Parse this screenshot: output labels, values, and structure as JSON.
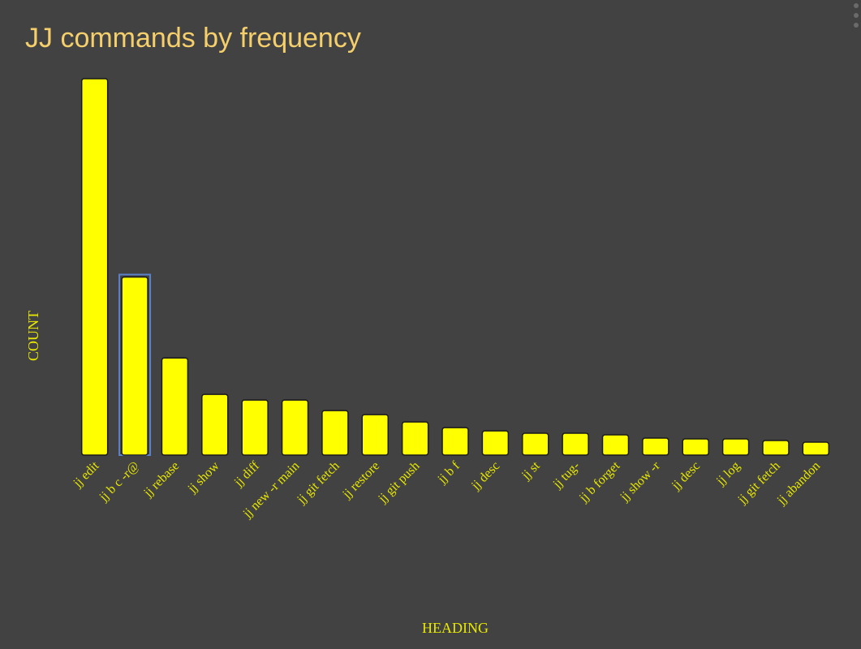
{
  "chart_data": {
    "type": "bar",
    "title": "JJ commands by frequency",
    "xlabel": "HEADING",
    "ylabel": "COUNT",
    "categories": [
      "jj edit",
      "jj b c -r@",
      "jj rebase",
      "jj show",
      "jj diff",
      "jj new -r main",
      "jj git fetch",
      "jj restore",
      "jj git push",
      "jj b f",
      "jj desc",
      "jj st",
      "jj tug-",
      "jj b forget",
      "jj show -r",
      "jj desc",
      "jj log",
      "jj git fetch",
      "jj abandon"
    ],
    "values": [
      465,
      220,
      120,
      75,
      68,
      68,
      55,
      50,
      41,
      34,
      30,
      27,
      27,
      25,
      21,
      20,
      20,
      18,
      16
    ],
    "ylim": [
      0,
      465
    ],
    "grid": false,
    "highlighted_index": 1,
    "colors": {
      "bar_fill": "#ffff00",
      "bar_stroke": "#1a1a1a",
      "highlight_stroke": "#5b82c9",
      "title": "#f5cf6b",
      "axis_text": "#e8e800",
      "background": "#424242"
    }
  }
}
